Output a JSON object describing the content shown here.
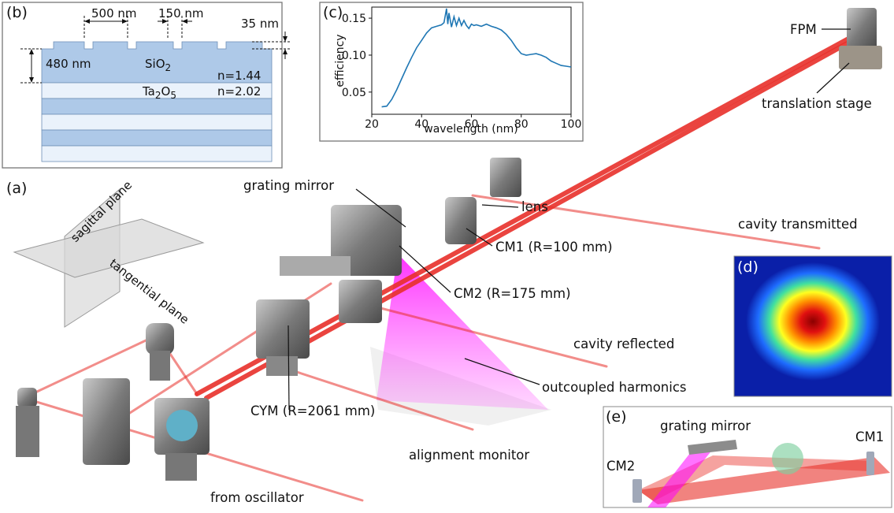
{
  "panel_labels": {
    "a": "(a)",
    "b": "(b)",
    "c": "(c)",
    "d": "(d)",
    "e": "(e)"
  },
  "panel_b": {
    "width_label": "500 nm",
    "gap_label": "150 nm",
    "depth_label": "35 nm",
    "thickness_label": "480 nm",
    "top_material_base": "SiO",
    "top_material_sub": "2",
    "top_index": "n=1.44",
    "second_material_base": "Ta",
    "second_material_sub1": "2",
    "second_material_mid": "O",
    "second_material_sub2": "5",
    "second_index": "n=2.02",
    "layer_colors": [
      "#aec9e8",
      "#eaf2fb",
      "#aec9e8",
      "#eaf2fb",
      "#aec9e8",
      "#eaf2fb"
    ]
  },
  "chart_data": {
    "type": "line",
    "xlabel": "wavelength (nm)",
    "ylabel": "efficiency",
    "xlim": [
      20,
      100
    ],
    "ylim": [
      0.02,
      0.165
    ],
    "xticks": [
      20,
      40,
      60,
      80,
      100
    ],
    "yticks": [
      0.05,
      0.1,
      0.15
    ],
    "ytick_labels": [
      "0.05",
      "0.10",
      "0.15"
    ],
    "series": [
      {
        "color": "#1f77b4",
        "x": [
          24,
          26,
          28,
          30,
          32,
          34,
          36,
          38,
          40,
          42,
          44,
          46,
          48,
          49,
          50,
          50.5,
          51,
          52,
          53,
          54,
          55,
          56,
          57,
          58,
          59,
          60,
          61,
          62,
          64,
          66,
          68,
          70,
          72,
          74,
          76,
          78,
          80,
          82,
          84,
          86,
          88,
          90,
          92,
          94,
          96,
          98,
          100
        ],
        "y": [
          0.03,
          0.031,
          0.04,
          0.053,
          0.068,
          0.083,
          0.097,
          0.11,
          0.12,
          0.13,
          0.137,
          0.139,
          0.141,
          0.144,
          0.163,
          0.142,
          0.157,
          0.138,
          0.152,
          0.14,
          0.15,
          0.14,
          0.147,
          0.14,
          0.136,
          0.142,
          0.14,
          0.141,
          0.139,
          0.142,
          0.139,
          0.137,
          0.134,
          0.128,
          0.12,
          0.11,
          0.102,
          0.1,
          0.101,
          0.102,
          0.1,
          0.097,
          0.092,
          0.089,
          0.086,
          0.085,
          0.084
        ]
      }
    ]
  },
  "setup_labels": {
    "fpm": "FPM",
    "translation_stage": "translation stage",
    "lens": "lens",
    "grating_mirror": "grating mirror",
    "cm1": "CM1 (R=100 mm)",
    "cm2": "CM2 (R=175 mm)",
    "cym": "CYM (R=2061 mm)",
    "cavity_transmitted": "cavity transmitted",
    "cavity_reflected": "cavity reflected",
    "outcoupled_harmonics": "outcoupled harmonics",
    "alignment_monitor": "alignment monitor",
    "from_oscillator": "from oscillator",
    "sagittal_plane": "sagittal plane",
    "tangential_plane": "tangential plane"
  },
  "panel_e": {
    "grating_mirror": "grating mirror",
    "cm1": "CM1",
    "cm2": "CM2"
  },
  "colors": {
    "beam": "#e8302a",
    "harmonics": "#e000e0",
    "hardware": "#8c8c8c",
    "curve": "#1f77b4"
  }
}
